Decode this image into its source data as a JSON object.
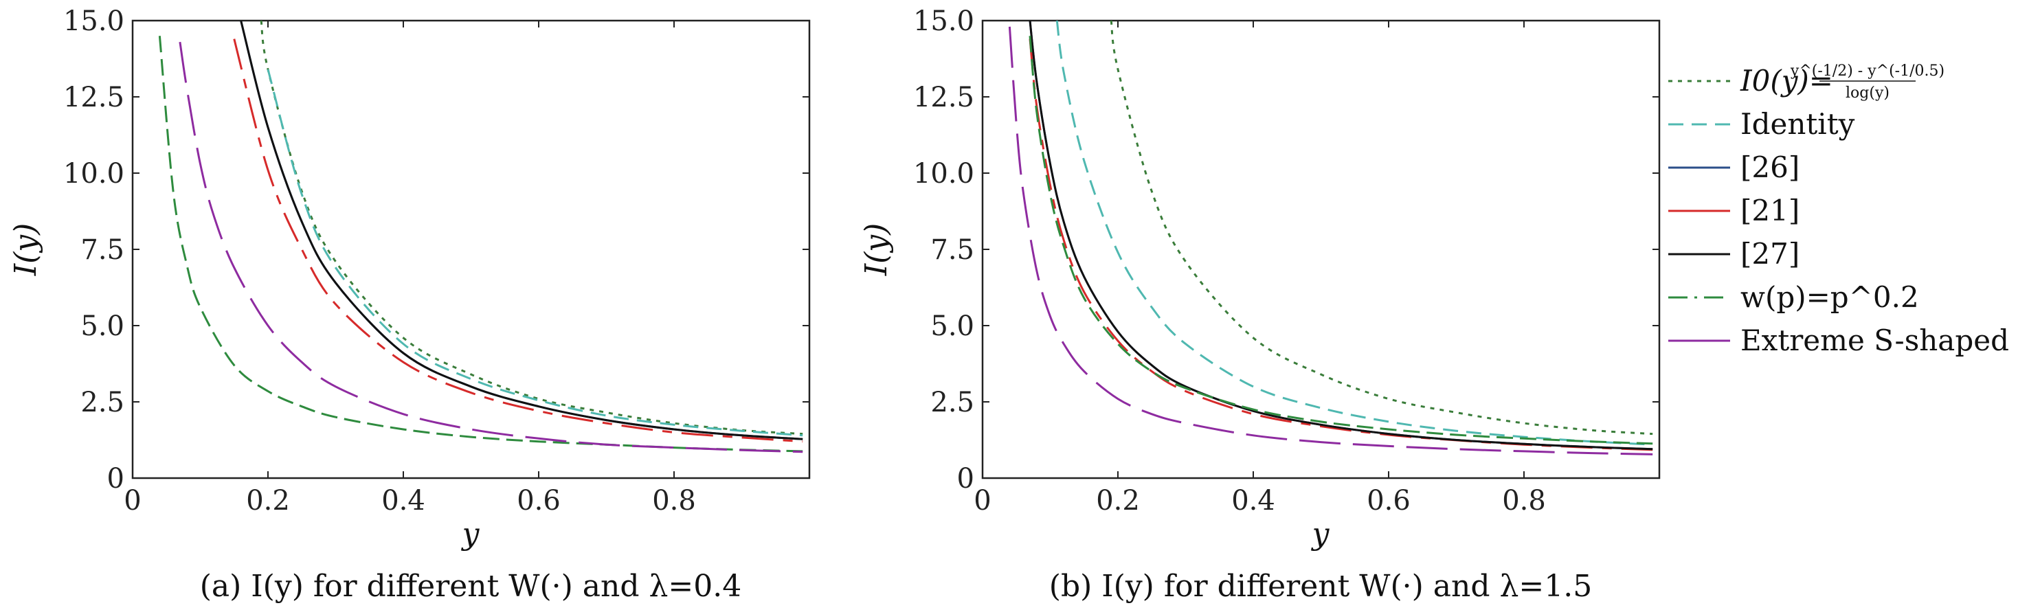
{
  "chart_data": [
    {
      "type": "line",
      "caption": "(a) I(y) for different W(·) and λ=0.4",
      "xlabel": "y",
      "ylabel": "I(y)",
      "xlim": [
        0,
        1
      ],
      "ylim": [
        0,
        15
      ],
      "xticks": [
        "0",
        "0.2",
        "0.4",
        "0.6",
        "0.8"
      ],
      "yticks": [
        "0",
        "2.5",
        "5.0",
        "7.5",
        "10.0",
        "12.5",
        "15.0"
      ],
      "series": [
        {
          "name": "I0(y)",
          "x": [
            0.19,
            0.2,
            0.25,
            0.3,
            0.4,
            0.5,
            0.6,
            0.7,
            0.8,
            0.9,
            0.99
          ],
          "y": [
            15.0,
            13.4,
            9.4,
            7.1,
            4.6,
            3.4,
            2.6,
            2.15,
            1.8,
            1.57,
            1.45
          ]
        },
        {
          "name": "Identity",
          "x": [
            0.2,
            0.25,
            0.3,
            0.4,
            0.5,
            0.6,
            0.7,
            0.8,
            0.9,
            0.99
          ],
          "y": [
            13.4,
            9.3,
            6.9,
            4.4,
            3.25,
            2.55,
            2.05,
            1.75,
            1.55,
            1.4
          ]
        },
        {
          "name": "[26]",
          "x": [
            0.16,
            0.2,
            0.25,
            0.3,
            0.4,
            0.5,
            0.6,
            0.7,
            0.8,
            0.9,
            0.99
          ],
          "y": [
            15.0,
            11.5,
            8.4,
            6.4,
            4.1,
            3.0,
            2.35,
            1.9,
            1.6,
            1.4,
            1.28
          ]
        },
        {
          "name": "[21]",
          "x": [
            0.15,
            0.2,
            0.25,
            0.3,
            0.4,
            0.5,
            0.6,
            0.7,
            0.8,
            0.9,
            0.99
          ],
          "y": [
            14.4,
            10.1,
            7.5,
            5.7,
            3.8,
            2.8,
            2.2,
            1.8,
            1.5,
            1.33,
            1.2
          ]
        },
        {
          "name": "[27]",
          "x": [
            0.16,
            0.2,
            0.25,
            0.3,
            0.4,
            0.5,
            0.6,
            0.7,
            0.8,
            0.9,
            0.99
          ],
          "y": [
            15.0,
            11.5,
            8.4,
            6.4,
            4.1,
            3.0,
            2.35,
            1.9,
            1.6,
            1.4,
            1.28
          ]
        },
        {
          "name": "w(p)=p^0.2",
          "x": [
            0.04,
            0.06,
            0.08,
            0.1,
            0.15,
            0.2,
            0.25,
            0.3,
            0.4,
            0.5,
            0.6,
            0.7,
            0.8,
            0.9,
            0.99
          ],
          "y": [
            14.5,
            9.4,
            7.0,
            5.6,
            3.7,
            2.85,
            2.35,
            2.0,
            1.6,
            1.35,
            1.2,
            1.1,
            1.0,
            0.93,
            0.88
          ]
        },
        {
          "name": "Extreme S-shaped",
          "x": [
            0.07,
            0.08,
            0.1,
            0.12,
            0.15,
            0.2,
            0.25,
            0.3,
            0.4,
            0.5,
            0.6,
            0.7,
            0.8,
            0.9,
            0.99
          ],
          "y": [
            14.3,
            12.8,
            10.3,
            8.6,
            6.9,
            5.0,
            3.8,
            3.0,
            2.1,
            1.6,
            1.3,
            1.1,
            1.0,
            0.92,
            0.86
          ]
        }
      ]
    },
    {
      "type": "line",
      "caption": "(b) I(y) for different W(·) and λ=1.5",
      "xlabel": "y",
      "ylabel": "I(y)",
      "xlim": [
        0,
        1
      ],
      "ylim": [
        0,
        15
      ],
      "xticks": [
        "0",
        "0.2",
        "0.4",
        "0.6",
        "0.8"
      ],
      "yticks": [
        "0",
        "2.5",
        "5.0",
        "7.5",
        "10.0",
        "12.5",
        "15.0"
      ],
      "series": [
        {
          "name": "I0(y)",
          "x": [
            0.19,
            0.2,
            0.25,
            0.3,
            0.4,
            0.5,
            0.6,
            0.7,
            0.8,
            0.9,
            0.99
          ],
          "y": [
            15.0,
            13.4,
            9.4,
            7.1,
            4.6,
            3.4,
            2.6,
            2.15,
            1.8,
            1.57,
            1.45
          ]
        },
        {
          "name": "Identity",
          "x": [
            0.11,
            0.12,
            0.15,
            0.2,
            0.25,
            0.3,
            0.4,
            0.5,
            0.6,
            0.7,
            0.8,
            0.9,
            0.99
          ],
          "y": [
            15.0,
            13.3,
            10.4,
            7.4,
            5.6,
            4.4,
            3.0,
            2.3,
            1.85,
            1.55,
            1.35,
            1.2,
            1.1
          ]
        },
        {
          "name": "[26]",
          "x": [
            0.07,
            0.08,
            0.1,
            0.12,
            0.15,
            0.2,
            0.25,
            0.3,
            0.4,
            0.5,
            0.6,
            0.7,
            0.8,
            0.9,
            0.99
          ],
          "y": [
            15.0,
            13.0,
            10.3,
            8.4,
            6.6,
            4.8,
            3.7,
            3.0,
            2.2,
            1.75,
            1.45,
            1.25,
            1.12,
            1.02,
            0.95
          ]
        },
        {
          "name": "[21]",
          "x": [
            0.07,
            0.08,
            0.1,
            0.12,
            0.15,
            0.2,
            0.25,
            0.3,
            0.4,
            0.5,
            0.6,
            0.7,
            0.8,
            0.9,
            0.99
          ],
          "y": [
            14.4,
            12.2,
            9.6,
            7.8,
            6.1,
            4.5,
            3.5,
            2.85,
            2.1,
            1.7,
            1.42,
            1.24,
            1.1,
            1.0,
            0.93
          ]
        },
        {
          "name": "[27]",
          "x": [
            0.07,
            0.08,
            0.1,
            0.12,
            0.15,
            0.2,
            0.25,
            0.3,
            0.4,
            0.5,
            0.6,
            0.7,
            0.8,
            0.9,
            0.99
          ],
          "y": [
            15.0,
            13.0,
            10.3,
            8.4,
            6.6,
            4.8,
            3.7,
            3.0,
            2.2,
            1.75,
            1.45,
            1.25,
            1.12,
            1.02,
            0.95
          ]
        },
        {
          "name": "w(p)=p^0.2",
          "x": [
            0.07,
            0.08,
            0.1,
            0.12,
            0.15,
            0.2,
            0.25,
            0.3,
            0.4,
            0.5,
            0.6,
            0.7,
            0.8,
            0.9,
            0.99
          ],
          "y": [
            14.5,
            12.0,
            9.3,
            7.6,
            5.9,
            4.4,
            3.5,
            2.95,
            2.25,
            1.85,
            1.6,
            1.42,
            1.3,
            1.2,
            1.13
          ]
        },
        {
          "name": "Extreme S-shaped",
          "x": [
            0.04,
            0.05,
            0.06,
            0.08,
            0.1,
            0.12,
            0.15,
            0.2,
            0.25,
            0.3,
            0.4,
            0.5,
            0.6,
            0.7,
            0.8,
            0.9,
            0.99
          ],
          "y": [
            14.8,
            11.6,
            9.4,
            6.8,
            5.3,
            4.4,
            3.5,
            2.6,
            2.1,
            1.8,
            1.4,
            1.18,
            1.05,
            0.95,
            0.88,
            0.82,
            0.78
          ]
        }
      ]
    }
  ],
  "legend": {
    "placement": "right of chart (b)",
    "items": [
      {
        "label": "I0(y)=",
        "formula_num": "y^(-1/2) - y^(-1/0.5)",
        "formula_den": "log(y)",
        "color": "#3a7d3a",
        "dash": "6 8"
      },
      {
        "label": "Identity",
        "color": "#4fb8b0",
        "dash": "22 12"
      },
      {
        "label": "[26]",
        "color": "#2c4f8a",
        "dash": ""
      },
      {
        "label": "[21]",
        "color": "#d62a2a",
        "dash": ""
      },
      {
        "label": "[27]",
        "color": "#111111",
        "dash": ""
      },
      {
        "label": "w(p)=p^0.2",
        "color": "#2e8b3e",
        "dash": "28 10 4 10"
      },
      {
        "label": "Extreme S-shaped",
        "color": "#8e2ba0",
        "dash": ""
      }
    ]
  },
  "series_styles": {
    "I0(y)": {
      "color": "#3a7d3a",
      "dash": "6 8"
    },
    "Identity": {
      "color": "#4fb8b0",
      "dash": "22 12"
    },
    "[26]": {
      "color": "#2c4f8a",
      "dash": ""
    },
    "[21]": {
      "color": "#d62a2a",
      "dash": "46 14 14 14"
    },
    "[27]": {
      "color": "#111111",
      "dash": ""
    },
    "w(p)=p^0.2": {
      "color": "#2e8b3e",
      "dash": "24 10"
    },
    "Extreme S-shaped": {
      "color": "#8e2ba0",
      "dash": "60 18"
    }
  }
}
